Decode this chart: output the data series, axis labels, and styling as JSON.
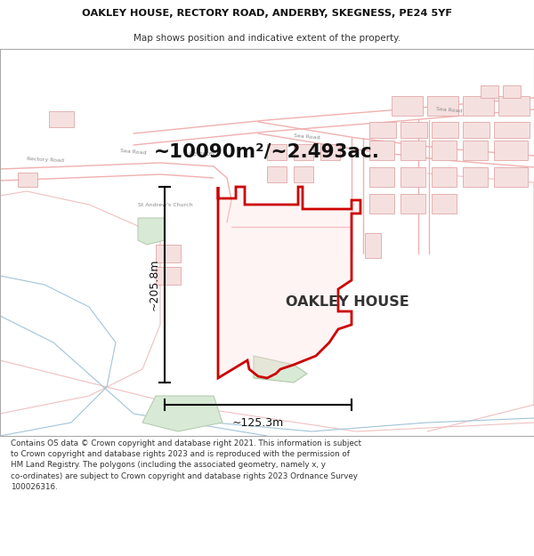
{
  "title_line1": "OAKLEY HOUSE, RECTORY ROAD, ANDERBY, SKEGNESS, PE24 5YF",
  "title_line2": "Map shows position and indicative extent of the property.",
  "area_text": "~10090m²/~2.493ac.",
  "property_label": "OAKLEY HOUSE",
  "dim_vertical": "~205.8m",
  "dim_horizontal": "~125.3m",
  "footer_line1": "Contains OS data © Crown copyright and database right 2021. This information is subject to Crown copyright and database rights 2023 and is reproduced with the permission of",
  "footer_line2": "HM Land Registry. The polygons (including the associated geometry, namely x, y co-ordinates) are subject to Crown copyright and database rights 2023 Ordnance Survey 100026316.",
  "prop_color": "#cc0000",
  "prop_fill": [
    1.0,
    0.88,
    0.88,
    0.35
  ],
  "road_pink": "#f0b0b0",
  "road_gray": "#d0c8c0",
  "bldg_fill": "#f5e0e0",
  "bldg_edge": "#e0a8a8",
  "green_fill": "#d8ead5",
  "green_edge": "#b0c8a8",
  "blue_line": "#a0c4d8",
  "text_gray": "#888888",
  "dim_color": "#111111"
}
